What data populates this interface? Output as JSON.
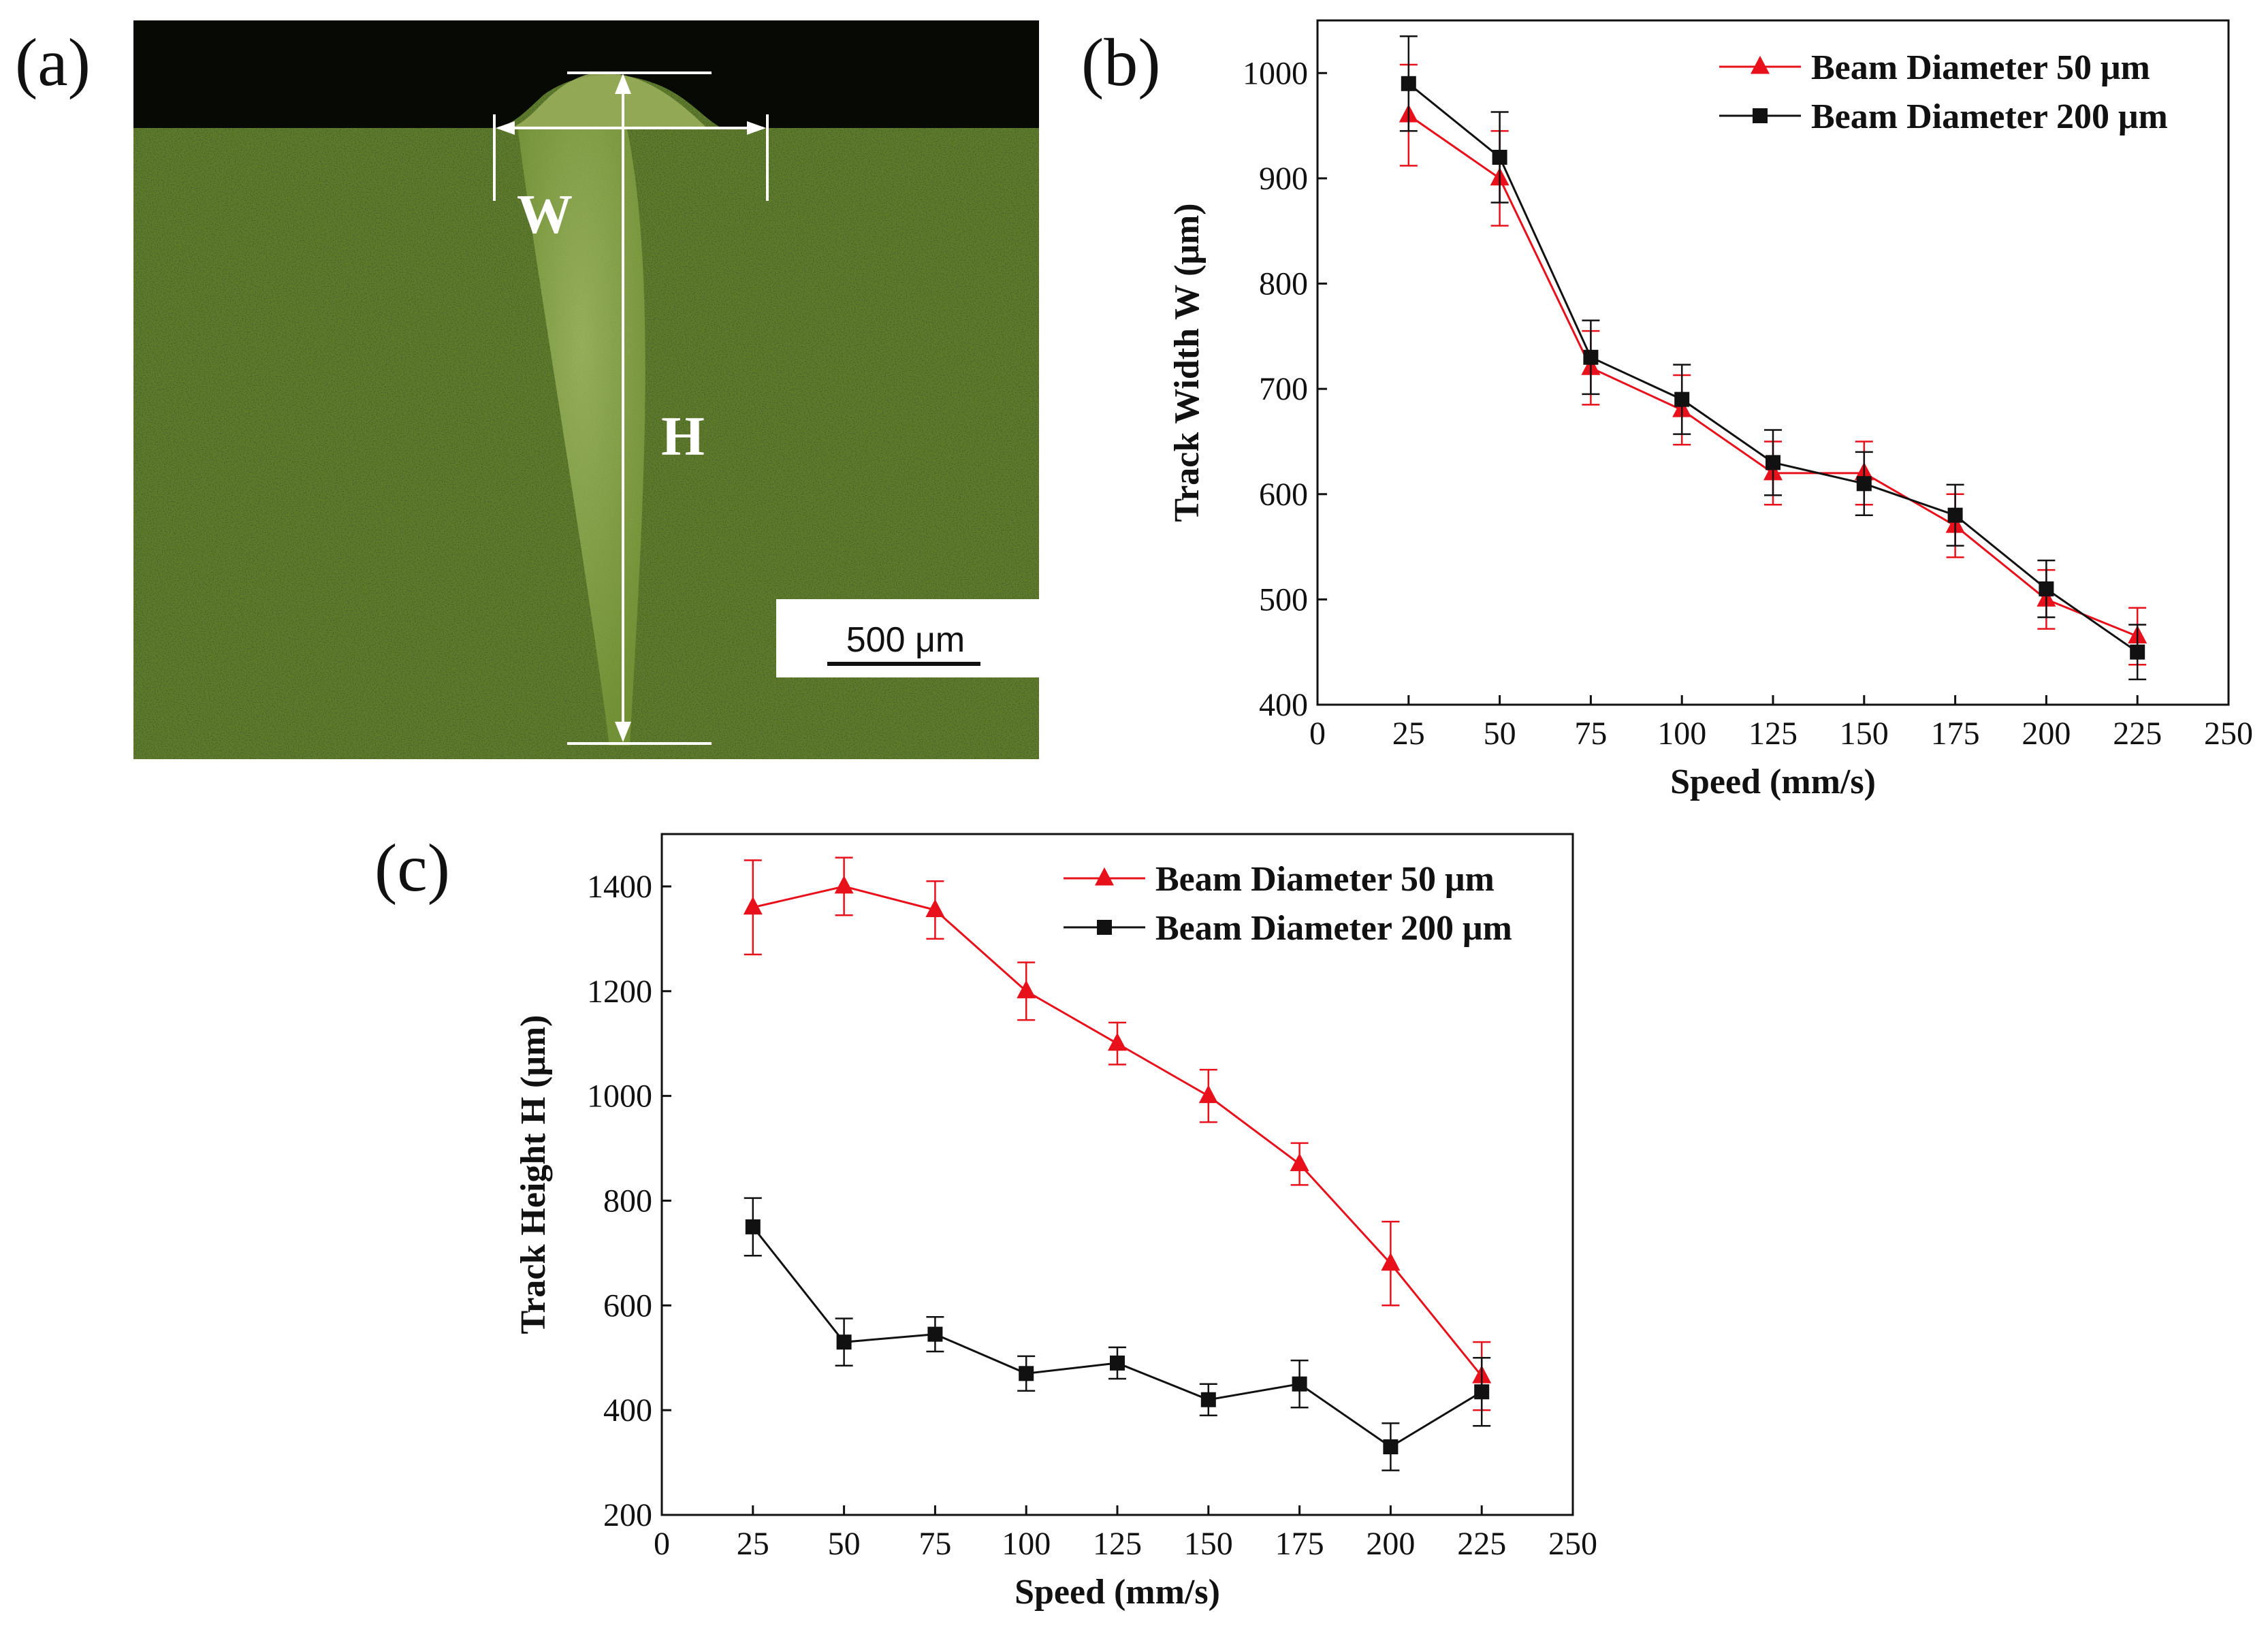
{
  "panel_a": {
    "label": "(a)",
    "width_label": "W",
    "height_label": "H",
    "scale_bar_text": "500 μm"
  },
  "chart_data": [
    {
      "type": "line",
      "panel_label": "(b)",
      "title": "",
      "xlabel": "Speed (mm/s)",
      "ylabel": "Track Width W  (μm)",
      "xlim": [
        0,
        250
      ],
      "ylim": [
        400,
        1050
      ],
      "xticks": [
        0,
        25,
        50,
        75,
        100,
        125,
        150,
        175,
        200,
        225,
        250
      ],
      "yticks": [
        400,
        500,
        600,
        700,
        800,
        900,
        1000
      ],
      "grid": false,
      "legend_position": "top-right",
      "x": [
        25,
        50,
        75,
        100,
        125,
        150,
        175,
        200,
        225
      ],
      "series": [
        {
          "name": "Beam Diameter 50 μm",
          "color": "#e8101a",
          "marker": "triangle",
          "values": [
            960,
            900,
            720,
            680,
            620,
            620,
            570,
            500,
            465
          ],
          "errors": [
            48,
            45,
            35,
            33,
            30,
            30,
            30,
            28,
            27
          ]
        },
        {
          "name": "Beam Diameter 200 μm",
          "color": "#111111",
          "marker": "square",
          "values": [
            990,
            920,
            730,
            690,
            630,
            610,
            580,
            510,
            450
          ],
          "errors": [
            45,
            43,
            35,
            33,
            31,
            30,
            29,
            27,
            26
          ]
        }
      ]
    },
    {
      "type": "line",
      "panel_label": "(c)",
      "title": "",
      "xlabel": "Speed (mm/s)",
      "ylabel": "Track Height H  (μm)",
      "xlim": [
        0,
        250
      ],
      "ylim": [
        200,
        1500
      ],
      "xticks": [
        0,
        25,
        50,
        75,
        100,
        125,
        150,
        175,
        200,
        225,
        250
      ],
      "yticks": [
        200,
        400,
        600,
        800,
        1000,
        1200,
        1400
      ],
      "grid": false,
      "legend_position": "top-right",
      "x": [
        25,
        50,
        75,
        100,
        125,
        150,
        175,
        200,
        225
      ],
      "series": [
        {
          "name": "Beam Diameter 50 μm",
          "color": "#e8101a",
          "marker": "triangle",
          "values": [
            1360,
            1400,
            1355,
            1200,
            1100,
            1000,
            870,
            680,
            465
          ],
          "errors": [
            90,
            55,
            55,
            55,
            40,
            50,
            40,
            80,
            65
          ]
        },
        {
          "name": "Beam Diameter 200 μm",
          "color": "#111111",
          "marker": "square",
          "values": [
            750,
            530,
            545,
            470,
            490,
            420,
            450,
            330,
            435
          ],
          "errors": [
            55,
            45,
            33,
            33,
            30,
            30,
            45,
            45,
            65
          ]
        }
      ]
    }
  ]
}
